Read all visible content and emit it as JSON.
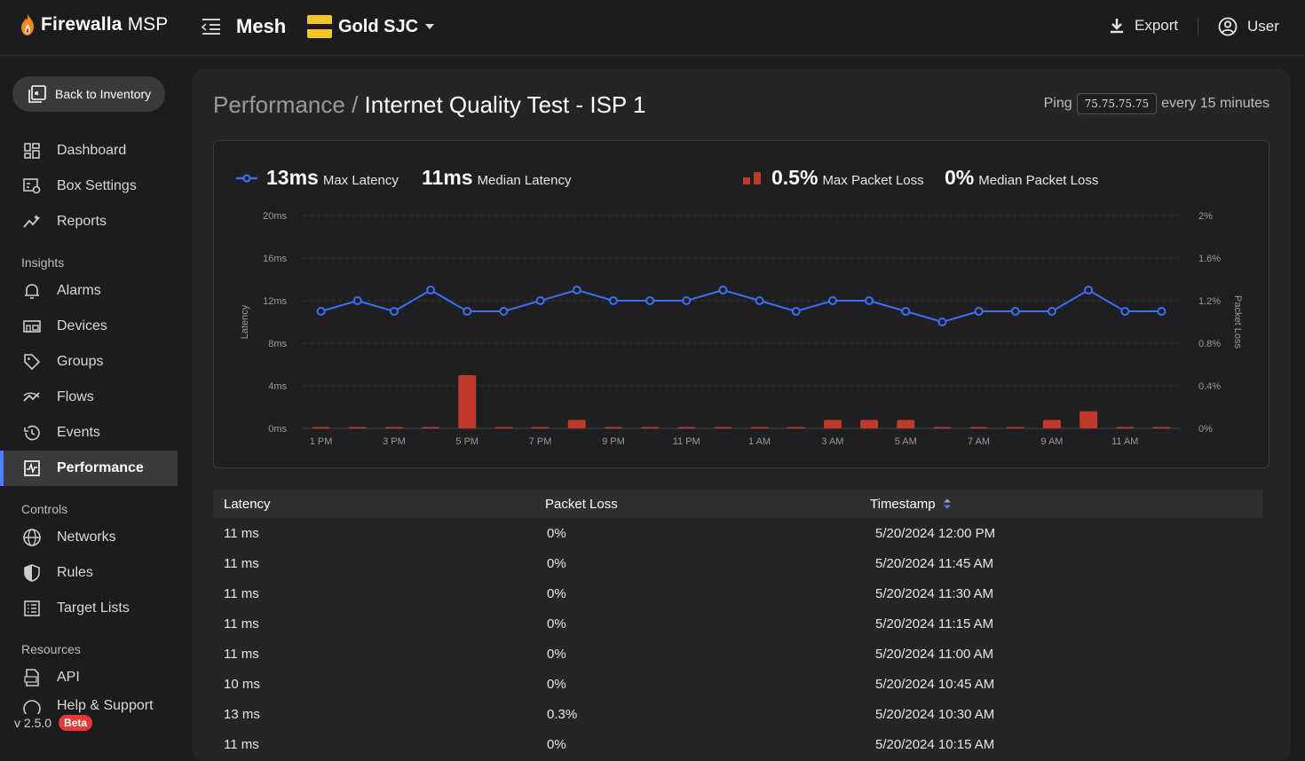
{
  "brand": {
    "name": "Firewalla",
    "suffix": "MSP"
  },
  "topbar": {
    "network": "Mesh",
    "box": "Gold SJC",
    "export_label": "Export",
    "user_label": "User"
  },
  "sidebar": {
    "back_label": "Back to Inventory",
    "items": [
      {
        "label": "Dashboard",
        "icon": "dashboard-icon"
      },
      {
        "label": "Box Settings",
        "icon": "box-settings-icon"
      },
      {
        "label": "Reports",
        "icon": "reports-icon"
      }
    ],
    "insights_label": "Insights",
    "insights": [
      {
        "label": "Alarms",
        "icon": "bell-icon"
      },
      {
        "label": "Devices",
        "icon": "devices-icon"
      },
      {
        "label": "Groups",
        "icon": "tag-icon"
      },
      {
        "label": "Flows",
        "icon": "flows-icon"
      },
      {
        "label": "Events",
        "icon": "history-icon"
      },
      {
        "label": "Performance",
        "icon": "performance-icon",
        "active": true
      }
    ],
    "controls_label": "Controls",
    "controls": [
      {
        "label": "Networks",
        "icon": "globe-icon"
      },
      {
        "label": "Rules",
        "icon": "shield-icon"
      },
      {
        "label": "Target Lists",
        "icon": "list-icon"
      }
    ],
    "resources_label": "Resources",
    "resources": [
      {
        "label": "API",
        "icon": "api-icon"
      },
      {
        "label": "Help & Support",
        "icon": "help-icon"
      }
    ],
    "version": "v 2.5.0",
    "beta": "Beta"
  },
  "page": {
    "crumb": "Performance",
    "separator": " / ",
    "title": "Internet Quality Test - ISP 1",
    "ping_label": "Ping",
    "ping_ip": "75.75.75.75",
    "ping_interval": "every 15 minutes"
  },
  "stats": {
    "max_latency": "13ms",
    "max_latency_label": "Max Latency",
    "median_latency": "11ms",
    "median_latency_label": "Median Latency",
    "max_loss": "0.5%",
    "max_loss_label": "Max Packet Loss",
    "median_loss": "0%",
    "median_loss_label": "Median Packet Loss"
  },
  "colors": {
    "latency": "#3b6ff5",
    "loss": "#c0392b",
    "accent": "#4d7fff"
  },
  "chart_data": {
    "type": "line",
    "ylabel": "Latency",
    "y2label": "Packet Loss",
    "ylim": [
      0,
      20
    ],
    "y2lim": [
      0,
      2
    ],
    "yticks": [
      "0ms",
      "4ms",
      "8ms",
      "12ms",
      "16ms",
      "20ms"
    ],
    "y2ticks": [
      "0%",
      "0.4%",
      "0.8%",
      "1.2%",
      "1.6%",
      "2%"
    ],
    "xticks": [
      "1 PM",
      "3 PM",
      "5 PM",
      "7 PM",
      "9 PM",
      "11 PM",
      "1 AM",
      "3 AM",
      "5 AM",
      "7 AM",
      "9 AM",
      "11 AM"
    ],
    "series": [
      {
        "name": "Latency",
        "type": "line",
        "values": [
          11,
          12,
          11,
          13,
          11,
          11,
          12,
          13,
          12,
          12,
          12,
          13,
          12,
          11,
          12,
          12,
          11,
          10,
          11,
          11,
          11,
          13,
          11,
          11
        ]
      },
      {
        "name": "Packet Loss",
        "type": "bar",
        "values": [
          0,
          0,
          0,
          0,
          0.5,
          0,
          0,
          0.08,
          0,
          0,
          0,
          0,
          0,
          0,
          0.08,
          0.08,
          0.08,
          0,
          0,
          0,
          0.08,
          0.16,
          0,
          0
        ]
      }
    ]
  },
  "table": {
    "headers": [
      "Latency",
      "Packet Loss",
      "Timestamp"
    ],
    "rows": [
      [
        "11 ms",
        "0%",
        "5/20/2024 12:00 PM"
      ],
      [
        "11 ms",
        "0%",
        "5/20/2024 11:45 AM"
      ],
      [
        "11 ms",
        "0%",
        "5/20/2024 11:30 AM"
      ],
      [
        "11 ms",
        "0%",
        "5/20/2024 11:15 AM"
      ],
      [
        "11 ms",
        "0%",
        "5/20/2024 11:00 AM"
      ],
      [
        "10 ms",
        "0%",
        "5/20/2024 10:45 AM"
      ],
      [
        "13 ms",
        "0.3%",
        "5/20/2024 10:30 AM"
      ],
      [
        "11 ms",
        "0%",
        "5/20/2024 10:15 AM"
      ]
    ]
  }
}
